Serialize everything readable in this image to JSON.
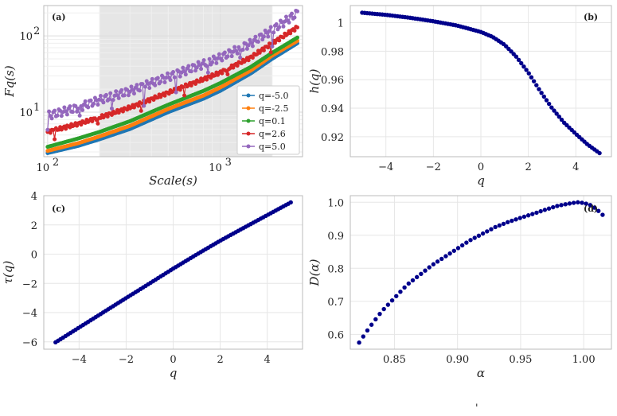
{
  "figure": {
    "note_glyph": "'"
  },
  "chart_data": [
    {
      "panel": "(a)",
      "type": "line",
      "xlabel": "Scale(s)",
      "ylabel": "Fq(s)",
      "xscale": "log",
      "yscale": "log",
      "xlim": [
        95,
        3000
      ],
      "ylim": [
        2.6,
        250
      ],
      "xticks": [
        "10^2",
        "10^3"
      ],
      "yticks": [
        "10^1",
        "10^2"
      ],
      "shaded_region": [
        200,
        2000
      ],
      "grid": true,
      "legend": "center-right",
      "series": [
        {
          "name": "q=-5.0",
          "color": "#1f77b4",
          "s": [
            100,
            150,
            200,
            300,
            500,
            800,
            1000,
            1500,
            2000,
            2800
          ],
          "F": [
            2.9,
            3.6,
            4.4,
            6.0,
            10.0,
            15.0,
            19.0,
            32.0,
            50.0,
            80.0
          ]
        },
        {
          "name": "q=-2.5",
          "color": "#ff7f0e",
          "s": [
            100,
            150,
            200,
            300,
            500,
            800,
            1000,
            1500,
            2000,
            2800
          ],
          "F": [
            3.1,
            3.9,
            4.8,
            6.6,
            11.0,
            16.5,
            21.0,
            35.0,
            55.0,
            86.0
          ]
        },
        {
          "name": "q=0.1",
          "color": "#2ca02c",
          "s": [
            100,
            150,
            200,
            300,
            500,
            800,
            1000,
            1500,
            2000,
            2800
          ],
          "F": [
            3.5,
            4.5,
            5.5,
            7.6,
            12.5,
            19.0,
            24.0,
            39.0,
            60.0,
            95.0
          ]
        },
        {
          "name": "q=2.6",
          "color": "#d62728",
          "s": [
            100,
            150,
            200,
            300,
            500,
            800,
            1000,
            1500,
            2000,
            2800
          ],
          "F": [
            5.5,
            7.0,
            8.5,
            11.5,
            18.0,
            27.0,
            33.0,
            52.0,
            80.0,
            130.0
          ]
        },
        {
          "name": "q=5.0",
          "color": "#9467bd",
          "s": [
            100,
            150,
            200,
            300,
            500,
            800,
            1000,
            1500,
            2000,
            2800
          ],
          "F": [
            9.0,
            11.5,
            14.5,
            19.0,
            29.0,
            43.0,
            52.0,
            80.0,
            120.0,
            200.0
          ]
        }
      ]
    },
    {
      "panel": "(b)",
      "type": "scatter",
      "xlabel": "q",
      "ylabel": "h(q)",
      "xlim": [
        -5.5,
        5.5
      ],
      "ylim": [
        0.906,
        1.012
      ],
      "xticks": [
        -4,
        -2,
        0,
        2,
        4
      ],
      "yticks": [
        0.92,
        0.94,
        0.96,
        0.98,
        1.0
      ],
      "grid": true,
      "color": "#00008b",
      "q": [
        -5,
        -4,
        -3,
        -2,
        -1,
        0,
        0.5,
        1,
        1.5,
        2,
        2.5,
        3,
        3.5,
        4,
        4.5,
        5
      ],
      "h": [
        1.007,
        1.0055,
        1.0035,
        1.001,
        0.998,
        0.9935,
        0.99,
        0.9845,
        0.976,
        0.965,
        0.952,
        0.94,
        0.93,
        0.922,
        0.9145,
        0.9085
      ]
    },
    {
      "panel": "(c)",
      "type": "scatter",
      "xlabel": "q",
      "ylabel": "τ(q)",
      "xlim": [
        -5.5,
        5.5
      ],
      "ylim": [
        -6.5,
        4
      ],
      "xticks": [
        -4,
        -2,
        0,
        2,
        4
      ],
      "yticks": [
        -6,
        -4,
        -2,
        0,
        2,
        4
      ],
      "grid": true,
      "color": "#00008b",
      "q": [
        -5,
        -4,
        -3,
        -2,
        -1,
        0,
        1,
        2,
        3,
        4,
        5
      ],
      "tau": [
        -6.03,
        -5.02,
        -4.01,
        -3.0,
        -2.0,
        -0.99,
        -0.02,
        0.92,
        1.8,
        2.67,
        3.54
      ]
    },
    {
      "panel": "(d)",
      "type": "scatter",
      "xlabel": "α",
      "ylabel": "D(α)",
      "xlim": [
        0.815,
        1.022
      ],
      "ylim": [
        0.555,
        1.02
      ],
      "xticks": [
        0.85,
        0.9,
        0.95,
        1.0
      ],
      "xtick_labels": [
        "0.85",
        "0.90",
        "0.95",
        "1.00"
      ],
      "yticks": [
        0.6,
        0.7,
        0.8,
        0.9,
        1.0
      ],
      "grid": true,
      "color": "#00008b",
      "alpha": [
        0.822,
        0.83,
        0.84,
        0.85,
        0.86,
        0.87,
        0.88,
        0.89,
        0.9,
        0.91,
        0.92,
        0.93,
        0.94,
        0.95,
        0.96,
        0.97,
        0.98,
        0.99,
        0.995,
        1.0,
        1.005,
        1.01,
        1.015
      ],
      "D": [
        0.575,
        0.62,
        0.67,
        0.71,
        0.75,
        0.78,
        0.81,
        0.835,
        0.86,
        0.885,
        0.905,
        0.925,
        0.94,
        0.953,
        0.965,
        0.978,
        0.99,
        0.997,
        1.0,
        0.998,
        0.992,
        0.98,
        0.962
      ]
    }
  ]
}
